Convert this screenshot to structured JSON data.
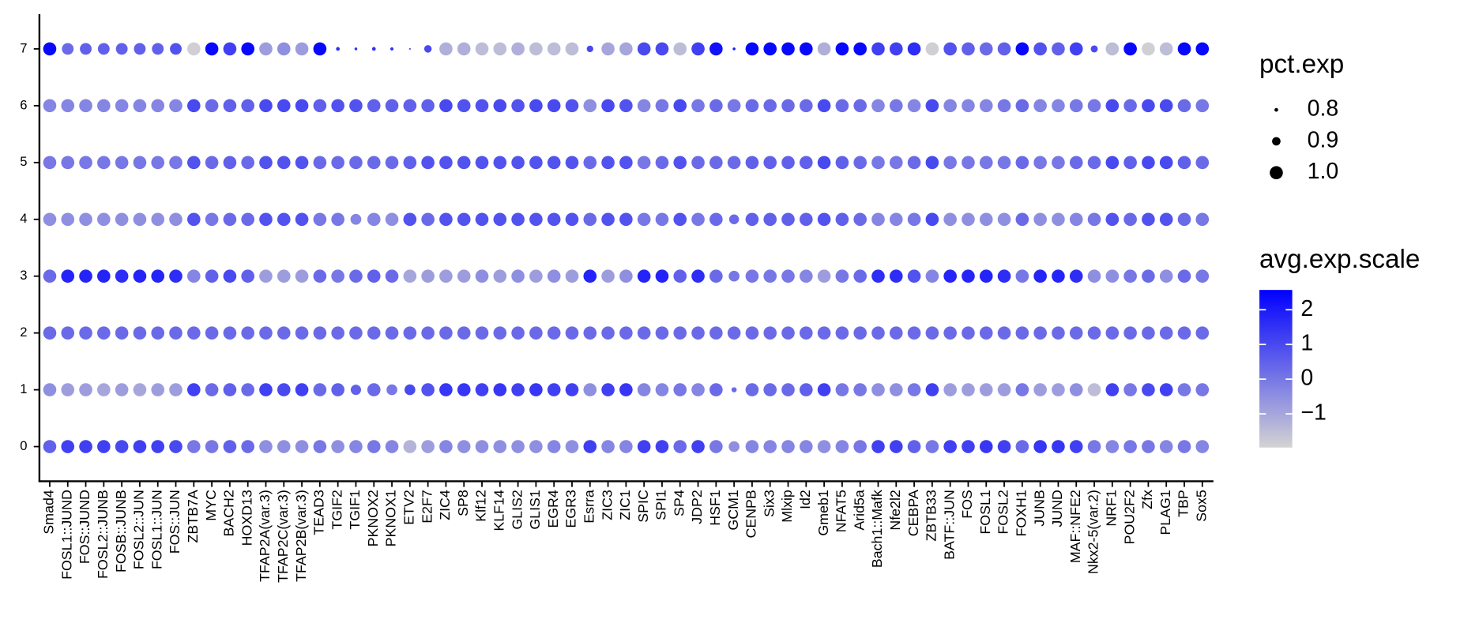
{
  "chart_data": {
    "type": "dot",
    "categories": [
      "Smad4",
      "FOSL1::JUND",
      "FOS::JUND",
      "FOSL2::JUNB",
      "FOSB::JUNB",
      "FOSL2::JUN",
      "FOSL1::JUN",
      "FOS::JUN",
      "ZBTB7A",
      "MYC",
      "BACH2",
      "HOXD13",
      "TFAP2A(var.3)",
      "TFAP2C(var.3)",
      "TFAP2B(var.3)",
      "TEAD3",
      "TGIF2",
      "TGIF1",
      "PKNOX2",
      "PKNOX1",
      "ETV2",
      "E2F7",
      "ZIC4",
      "SP8",
      "Klf12",
      "KLF14",
      "GLIS2",
      "GLIS1",
      "EGR4",
      "EGR3",
      "Esrra",
      "ZIC3",
      "ZIC1",
      "SPIC",
      "SPI1",
      "SP4",
      "JDP2",
      "HSF1",
      "GCM1",
      "CENPB",
      "Six3",
      "Mlxip",
      "Id2",
      "Gmeb1",
      "NFAT5",
      "Arid5a",
      "Bach1::Mafk",
      "Nfe2l2",
      "CEBPA",
      "ZBTB33",
      "BATF::JUN",
      "FOS",
      "FOSL1",
      "FOSL2",
      "FOXH1",
      "JUNB",
      "JUND",
      "MAF::NFE2",
      "Nkx2-5(var.2)",
      "NRF1",
      "POU2F2",
      "Zfx",
      "PLAG1",
      "TBP",
      "Sox5"
    ],
    "rows": [
      "0",
      "1",
      "2",
      "3",
      "4",
      "5",
      "6",
      "7"
    ],
    "values": [
      [
        0.5,
        1.2,
        1.2,
        1.2,
        1.0,
        1.2,
        1.2,
        1.0,
        0,
        0,
        0.5,
        0.3,
        -0.5,
        -0.5,
        -0.5,
        0,
        -0.5,
        -0.3,
        0,
        -0.3,
        -1.3,
        -0.8,
        -0.3,
        -0.5,
        -0.5,
        -0.5,
        -0.5,
        -0.5,
        -0.3,
        -0.5,
        1.2,
        -0.3,
        -0.3,
        1.2,
        1.2,
        0.3,
        1.2,
        0,
        -0.5,
        -0.3,
        -0.3,
        -0.3,
        -0.3,
        -0.5,
        -0.3,
        0,
        1.2,
        1.2,
        0.5,
        0,
        1.2,
        1.2,
        1.4,
        1.2,
        0.3,
        1.4,
        1.4,
        1.2,
        0,
        -0.3,
        0,
        0,
        -0.3,
        0,
        -0.3
      ],
      [
        -0.5,
        -0.8,
        -0.8,
        -1.0,
        -0.8,
        -1.0,
        -0.8,
        -0.8,
        1.2,
        0.3,
        0.5,
        0.3,
        1.2,
        1.0,
        1.2,
        0.3,
        0.5,
        0.5,
        0.3,
        0,
        1.0,
        0.8,
        1.4,
        1.4,
        1.2,
        1.4,
        1.2,
        1.4,
        1.2,
        1.2,
        -0.5,
        1.2,
        1.4,
        -0.3,
        -0.3,
        0,
        -0.3,
        0.3,
        0.3,
        0.3,
        0.3,
        0.3,
        0.5,
        1.2,
        0,
        0,
        -0.5,
        -0.5,
        0,
        1.2,
        -0.8,
        -0.8,
        -0.8,
        -0.8,
        0,
        -0.8,
        -0.8,
        -0.5,
        -1.5,
        1.2,
        0,
        1.0,
        1.2,
        0,
        0
      ],
      [
        0.3,
        0.3,
        0.3,
        0.3,
        0.3,
        0.3,
        0.3,
        0.3,
        0.3,
        0.3,
        0.3,
        0.3,
        0.3,
        0.3,
        0.3,
        0.3,
        0.3,
        0.3,
        0.3,
        0.3,
        0.3,
        0.3,
        0.3,
        0.3,
        0.3,
        0.3,
        0.3,
        0.3,
        0.3,
        0.3,
        0.3,
        0.3,
        0.3,
        0.3,
        0.3,
        0.3,
        0.3,
        0.3,
        0.3,
        0.3,
        0.3,
        0.3,
        0.3,
        0.3,
        0.3,
        0.3,
        0.3,
        0.3,
        0.3,
        0.3,
        0.3,
        0.3,
        0.3,
        0.3,
        0.3,
        0.3,
        0.3,
        0.3,
        0.3,
        0.3,
        0.3,
        0.3,
        0.3,
        0.3,
        0.3
      ],
      [
        0.3,
        1.8,
        1.8,
        1.8,
        1.6,
        1.8,
        1.8,
        1.6,
        -0.3,
        0.5,
        1.0,
        0.5,
        -0.8,
        -0.8,
        -0.8,
        0.3,
        0,
        0.3,
        0.5,
        0.3,
        -1.0,
        -0.8,
        -0.8,
        -0.8,
        -0.5,
        -0.8,
        -0.5,
        -0.8,
        -0.5,
        -0.8,
        1.8,
        -0.8,
        -0.5,
        1.8,
        1.8,
        0.5,
        1.6,
        0.3,
        0,
        0,
        0,
        0,
        -0.3,
        -0.8,
        0,
        0.3,
        1.6,
        1.6,
        0.8,
        -0.3,
        1.8,
        1.8,
        1.8,
        1.6,
        0,
        1.8,
        1.8,
        1.6,
        -0.5,
        -0.5,
        0,
        0.3,
        -0.5,
        0.3,
        0
      ],
      [
        -0.5,
        -0.5,
        -0.5,
        -0.5,
        -0.5,
        -0.5,
        -0.5,
        -0.5,
        0.8,
        0,
        0.3,
        0.3,
        0.8,
        0.8,
        0.8,
        0,
        0,
        -0.3,
        -0.3,
        -0.5,
        0.8,
        0.3,
        0.8,
        0.8,
        0.8,
        0.8,
        0.8,
        0.8,
        0.8,
        0.8,
        0.3,
        0.8,
        0.8,
        0,
        0,
        0.8,
        0,
        0.3,
        0.3,
        0.5,
        0.5,
        0.5,
        0.5,
        0.8,
        0.5,
        0.3,
        -0.3,
        -0.3,
        0,
        1.0,
        -0.5,
        -0.5,
        -0.5,
        -0.5,
        0.3,
        -0.5,
        -0.5,
        -0.3,
        0,
        0.8,
        0.3,
        0.8,
        0.8,
        0.3,
        0
      ],
      [
        0,
        0,
        0,
        0,
        0,
        0,
        0,
        0,
        0.8,
        0.3,
        0.5,
        0.3,
        0.8,
        0.8,
        0.8,
        0.3,
        0.3,
        0.3,
        0.3,
        0.3,
        0.5,
        0.8,
        0.8,
        0.8,
        0.8,
        0.8,
        0.8,
        0.8,
        0.8,
        0.8,
        0.3,
        0.8,
        0.8,
        0,
        0.3,
        0.8,
        0.3,
        0.3,
        0.3,
        0.5,
        0.5,
        0.5,
        0.5,
        1.0,
        0.5,
        0.3,
        0,
        0,
        0.3,
        1.0,
        0,
        0,
        0,
        0,
        0.3,
        0,
        0,
        0.3,
        0.3,
        1.0,
        0.5,
        1.0,
        1.0,
        0.5,
        0.3
      ],
      [
        -0.3,
        -0.3,
        -0.3,
        -0.3,
        -0.3,
        -0.3,
        -0.3,
        -0.3,
        1.0,
        0.3,
        0.5,
        0.5,
        1.0,
        1.0,
        1.0,
        0.5,
        0.8,
        0.8,
        0.5,
        0.5,
        0.5,
        0.5,
        1.0,
        0.8,
        0.8,
        1.0,
        0.8,
        1.0,
        1.0,
        0.8,
        -0.5,
        1.0,
        0.8,
        -0.3,
        0,
        1.0,
        0,
        0.3,
        0,
        0.3,
        0.3,
        0.3,
        0.3,
        1.0,
        0.3,
        0.3,
        -0.3,
        0,
        -0.3,
        1.0,
        -0.3,
        -0.3,
        -0.3,
        0,
        0.3,
        -0.3,
        -0.3,
        0,
        0,
        1.0,
        0.3,
        1.0,
        1.0,
        0.3,
        0
      ],
      [
        2.4,
        0.3,
        0.5,
        0.5,
        0.5,
        0.5,
        0.5,
        0.8,
        -1.9,
        2.4,
        1.2,
        2.4,
        -0.8,
        -0.5,
        -0.8,
        2.4,
        1.5,
        1.5,
        1.5,
        1.5,
        0.5,
        1.0,
        -1.2,
        -1.2,
        -1.5,
        -1.5,
        -1.2,
        -1.5,
        -1.5,
        -1.5,
        1.0,
        -1.0,
        -1.0,
        1.0,
        1.0,
        -1.5,
        1.2,
        2.2,
        2.0,
        2.4,
        2.4,
        2.4,
        2.4,
        -1.2,
        2.4,
        2.4,
        1.2,
        1.2,
        1.6,
        -1.9,
        0.8,
        0.5,
        0.3,
        0.5,
        2.4,
        0.8,
        0.5,
        1.2,
        1.0,
        -1.5,
        2.4,
        -1.9,
        -1.5,
        2.4,
        2.4
      ]
    ],
    "sizes": [
      [
        1,
        1,
        1,
        1,
        1,
        1,
        1,
        1,
        1,
        1,
        1,
        1,
        1,
        1,
        1,
        1,
        1,
        1,
        1,
        1,
        1,
        1,
        1,
        1,
        1,
        1,
        1,
        1,
        1,
        1,
        1,
        1,
        1,
        1,
        1,
        1,
        1,
        1,
        0.95,
        1,
        1,
        1,
        1,
        1,
        1,
        1,
        1,
        1,
        1,
        1,
        1,
        1,
        1,
        1,
        1,
        1,
        1,
        1,
        1,
        1,
        1,
        1,
        1,
        1,
        1
      ],
      [
        1,
        1,
        1,
        1,
        1,
        1,
        1,
        1,
        1,
        1,
        1,
        1,
        1,
        1,
        1,
        1,
        1,
        0.94,
        1,
        0.95,
        0.95,
        1,
        1,
        1,
        1,
        1,
        1,
        1,
        1,
        1,
        1,
        1,
        1,
        1,
        1,
        1,
        1,
        1,
        0.83,
        1,
        1,
        1,
        1,
        1,
        1,
        1,
        1,
        1,
        1,
        1,
        1,
        1,
        1,
        1,
        1,
        1,
        1,
        1,
        1,
        1,
        1,
        1,
        1,
        1,
        1
      ],
      [
        1,
        1,
        1,
        1,
        1,
        1,
        1,
        1,
        1,
        1,
        1,
        1,
        1,
        1,
        1,
        1,
        1,
        1,
        1,
        1,
        1,
        1,
        1,
        1,
        1,
        1,
        1,
        1,
        1,
        1,
        1,
        1,
        1,
        1,
        1,
        1,
        1,
        1,
        1,
        1,
        1,
        1,
        1,
        1,
        1,
        1,
        1,
        1,
        1,
        1,
        1,
        1,
        1,
        1,
        1,
        1,
        1,
        1,
        1,
        1,
        1,
        1,
        1,
        1,
        1
      ],
      [
        1,
        1,
        1,
        1,
        1,
        1,
        1,
        1,
        1,
        1,
        1,
        1,
        1,
        1,
        1,
        1,
        1,
        1,
        1,
        1,
        1,
        1,
        1,
        1,
        1,
        1,
        1,
        1,
        1,
        1,
        1,
        1,
        1,
        1,
        1,
        1,
        1,
        1,
        0.95,
        1,
        1,
        1,
        1,
        1,
        1,
        1,
        1,
        1,
        1,
        1,
        1,
        1,
        1,
        1,
        1,
        1,
        1,
        1,
        1,
        1,
        1,
        1,
        1,
        1,
        1
      ],
      [
        1,
        1,
        1,
        1,
        1,
        1,
        1,
        1,
        1,
        1,
        1,
        1,
        1,
        1,
        1,
        1,
        1,
        0.95,
        1,
        1,
        1,
        1,
        1,
        1,
        1,
        1,
        1,
        1,
        1,
        1,
        1,
        1,
        1,
        1,
        1,
        1,
        1,
        1,
        0.93,
        1,
        1,
        1,
        1,
        1,
        1,
        1,
        1,
        1,
        1,
        1,
        1,
        1,
        1,
        1,
        1,
        1,
        1,
        1,
        1,
        1,
        1,
        1,
        1,
        1,
        1
      ],
      [
        1,
        1,
        1,
        1,
        1,
        1,
        1,
        1,
        1,
        1,
        1,
        1,
        1,
        1,
        1,
        1,
        1,
        1,
        1,
        1,
        1,
        1,
        1,
        1,
        1,
        1,
        1,
        1,
        1,
        1,
        1,
        1,
        1,
        1,
        1,
        1,
        1,
        1,
        1,
        1,
        1,
        1,
        1,
        1,
        1,
        1,
        1,
        1,
        1,
        1,
        1,
        1,
        1,
        1,
        1,
        1,
        1,
        1,
        1,
        1,
        1,
        1,
        1,
        1,
        1
      ],
      [
        1,
        1,
        1,
        1,
        1,
        1,
        1,
        1,
        1,
        1,
        1,
        1,
        1,
        1,
        1,
        1,
        1,
        1,
        1,
        1,
        1,
        1,
        1,
        1,
        1,
        1,
        1,
        1,
        1,
        1,
        1,
        1,
        1,
        1,
        1,
        1,
        1,
        1,
        1,
        1,
        1,
        1,
        1,
        1,
        1,
        1,
        1,
        1,
        1,
        1,
        1,
        1,
        1,
        1,
        1,
        1,
        1,
        1,
        1,
        1,
        1,
        1,
        1,
        1,
        1
      ],
      [
        1,
        0.97,
        0.97,
        0.97,
        0.97,
        0.97,
        0.97,
        0.97,
        1,
        1,
        1,
        1,
        1,
        1,
        1,
        1,
        0.8,
        0.78,
        0.8,
        0.79,
        0.76,
        0.88,
        1,
        1,
        1,
        1,
        1,
        1,
        1,
        1,
        0.86,
        1,
        1,
        1,
        1,
        1,
        1,
        1,
        0.78,
        1,
        1,
        1,
        1,
        1,
        1,
        1,
        1,
        1,
        1,
        1,
        1,
        1,
        1,
        1,
        1,
        1,
        1,
        1,
        0.87,
        1,
        1,
        1,
        1,
        1,
        1
      ]
    ],
    "size_lim": [
      0.72,
      1.0
    ],
    "size_legend": {
      "title": "pct.exp",
      "values": [
        0.8,
        0.9,
        {
          "value": 1,
          "label": "1.0"
        }
      ]
    },
    "color_legend": {
      "title": "avg.exp.scale",
      "ticks": [
        2,
        1,
        0,
        {
          "value": -1,
          "label": "−1"
        }
      ],
      "lim": [
        -1.97,
        2.57
      ],
      "colors": [
        "#d3d3d3",
        "#0000ff"
      ]
    }
  }
}
